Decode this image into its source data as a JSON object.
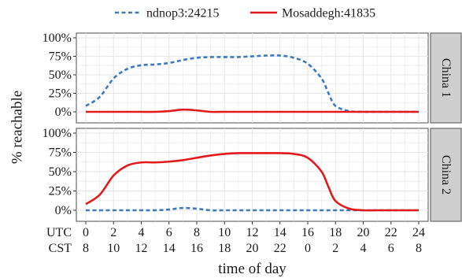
{
  "chart_data": {
    "type": "line",
    "legend": {
      "placement": "top",
      "entries": [
        {
          "label": "ndnop3:24215",
          "color": "#3b7bbd",
          "dash": "dashed"
        },
        {
          "label": "Mosaddegh:41835",
          "color": "#e31a1c",
          "dash": "solid"
        }
      ]
    },
    "ylabel": "% reachable",
    "xlabel": "time of day",
    "ylim": [
      0,
      100
    ],
    "y_ticks": [
      "0%",
      "25%",
      "50%",
      "75%",
      "100%"
    ],
    "xlim": [
      0,
      24
    ],
    "x_ticks": [
      0,
      2,
      4,
      6,
      8,
      10,
      12,
      14,
      16,
      18,
      20,
      22,
      24
    ],
    "x_tick_rows": [
      {
        "label": "UTC",
        "ticks": [
          "0",
          "2",
          "4",
          "6",
          "8",
          "10",
          "12",
          "14",
          "16",
          "18",
          "20",
          "22",
          "24"
        ]
      },
      {
        "label": "CST",
        "ticks": [
          "8",
          "10",
          "12",
          "14",
          "16",
          "18",
          "20",
          "22",
          "0",
          "2",
          "4",
          "6",
          "8"
        ]
      }
    ],
    "grid": true,
    "panels": [
      {
        "label": "China 1",
        "series": [
          {
            "name": "ndnop3:24215",
            "x": [
              0,
              1,
              2,
              3,
              4,
              5,
              6,
              7,
              8,
              9,
              10,
              11,
              12,
              13,
              14,
              15,
              16,
              17,
              17.5,
              18,
              19,
              20,
              21,
              22,
              23,
              24
            ],
            "values": [
              8,
              20,
              45,
              58,
              63,
              64,
              66,
              70,
              73,
              74,
              74,
              74,
              75,
              76,
              76,
              73,
              65,
              45,
              25,
              8,
              1,
              0,
              0,
              0,
              0,
              0
            ]
          },
          {
            "name": "Mosaddegh:41835",
            "x": [
              0,
              1,
              2,
              3,
              4,
              5,
              6,
              7,
              8,
              9,
              10,
              12,
              14,
              16,
              18,
              20,
              22,
              24
            ],
            "values": [
              0,
              0,
              0,
              0,
              0,
              0,
              1,
              3,
              2,
              0,
              0,
              0,
              0,
              0,
              0,
              0,
              0,
              0
            ]
          }
        ]
      },
      {
        "label": "China 2",
        "series": [
          {
            "name": "ndnop3:24215",
            "x": [
              0,
              1,
              2,
              3,
              4,
              5,
              6,
              7,
              8,
              9,
              10,
              12,
              14,
              16,
              18,
              20,
              22,
              24
            ],
            "values": [
              0,
              0,
              0,
              0,
              0,
              0,
              1,
              3,
              2,
              0,
              0,
              0,
              0,
              0,
              0,
              0,
              0,
              0
            ]
          },
          {
            "name": "Mosaddegh:41835",
            "x": [
              0,
              1,
              2,
              3,
              4,
              5,
              6,
              7,
              8,
              9,
              10,
              11,
              12,
              13,
              14,
              15,
              16,
              17,
              17.5,
              18,
              19,
              20,
              21,
              22,
              23,
              24
            ],
            "values": [
              8,
              20,
              45,
              58,
              62,
              62,
              63,
              65,
              68,
              71,
              73,
              74,
              74,
              74,
              74,
              73,
              68,
              50,
              30,
              12,
              2,
              0,
              0,
              0,
              0,
              0
            ]
          }
        ]
      }
    ]
  }
}
